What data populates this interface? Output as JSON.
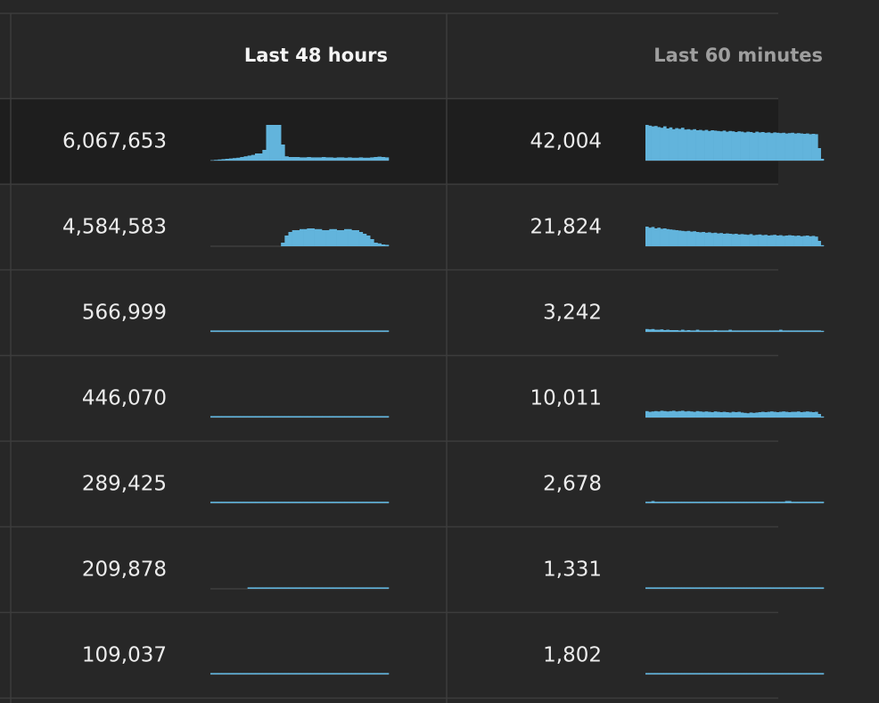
{
  "table": {
    "headers": [
      "Last 48 hours",
      "Last 60 minutes"
    ],
    "ylim": [
      0,
      100
    ],
    "rows": [
      {
        "cells": [
          {
            "value": "6,067,653",
            "spark": [
              1,
              2,
              3,
              4,
              5,
              6,
              7,
              8,
              10,
              12,
              14,
              16,
              20,
              20,
              30,
              100,
              100,
              100,
              100,
              45,
              12,
              10,
              10,
              10,
              9,
              9,
              10,
              9,
              9,
              9,
              10,
              9,
              9,
              8,
              9,
              9,
              8,
              9,
              8,
              8,
              9,
              8,
              8,
              9,
              10,
              11,
              10,
              9
            ]
          },
          {
            "value": "42,004",
            "spark": [
              100,
              98,
              96,
              97,
              94,
              92,
              96,
              90,
              93,
              88,
              91,
              89,
              92,
              87,
              88,
              86,
              88,
              85,
              86,
              84,
              86,
              83,
              85,
              84,
              83,
              82,
              84,
              81,
              83,
              82,
              80,
              82,
              81,
              79,
              81,
              80,
              78,
              81,
              79,
              80,
              78,
              79,
              77,
              79,
              78,
              77,
              78,
              76,
              77,
              78,
              76,
              77,
              76,
              75,
              76,
              74,
              75,
              74,
              35,
              5
            ]
          }
        ]
      },
      {
        "cells": [
          {
            "value": "4,584,583",
            "spark": [
              0,
              0,
              0,
              0,
              0,
              0,
              0,
              0,
              0,
              0,
              0,
              0,
              0,
              0,
              0,
              0,
              0,
              0,
              0,
              10,
              30,
              40,
              45,
              45,
              48,
              48,
              50,
              50,
              48,
              48,
              45,
              45,
              48,
              48,
              45,
              45,
              48,
              48,
              45,
              45,
              40,
              35,
              30,
              20,
              10,
              8,
              5,
              4
            ]
          },
          {
            "value": "21,824",
            "spark": [
              55,
              52,
              54,
              50,
              52,
              49,
              50,
              48,
              47,
              46,
              45,
              44,
              43,
              42,
              43,
              41,
              42,
              40,
              39,
              40,
              38,
              39,
              37,
              38,
              36,
              37,
              35,
              36,
              35,
              34,
              35,
              33,
              34,
              33,
              32,
              34,
              31,
              32,
              33,
              31,
              32,
              30,
              31,
              32,
              30,
              31,
              29,
              30,
              31,
              30,
              29,
              30,
              28,
              29,
              30,
              28,
              29,
              27,
              15,
              3
            ]
          }
        ]
      },
      {
        "cells": [
          {
            "value": "566,999",
            "spark": [
              4,
              4,
              4,
              4,
              4,
              4,
              4,
              4,
              4,
              4,
              4,
              4,
              4,
              4,
              4,
              4,
              4,
              4,
              4,
              4,
              4,
              4,
              4,
              4,
              4,
              4,
              4,
              4,
              4,
              4,
              4,
              4,
              4,
              4,
              4,
              4,
              4,
              4,
              4,
              4,
              4,
              4,
              4,
              4,
              4,
              4,
              4,
              4
            ]
          },
          {
            "value": "3,242",
            "spark": [
              8,
              7,
              8,
              6,
              6,
              7,
              5,
              6,
              5,
              5,
              5,
              4,
              6,
              4,
              5,
              4,
              4,
              6,
              4,
              4,
              4,
              4,
              4,
              5,
              4,
              4,
              4,
              4,
              6,
              4,
              4,
              4,
              4,
              4,
              4,
              4,
              4,
              4,
              4,
              4,
              4,
              4,
              4,
              4,
              4,
              6,
              4,
              4,
              4,
              4,
              4,
              4,
              4,
              4,
              4,
              4,
              4,
              4,
              4,
              3
            ]
          }
        ]
      },
      {
        "cells": [
          {
            "value": "446,070",
            "spark": [
              4,
              4,
              4,
              4,
              4,
              4,
              4,
              4,
              4,
              4,
              4,
              4,
              4,
              4,
              4,
              4,
              4,
              4,
              4,
              4,
              4,
              4,
              4,
              4,
              4,
              4,
              4,
              4,
              4,
              4,
              4,
              4,
              4,
              4,
              4,
              4,
              4,
              4,
              4,
              4,
              4,
              4,
              4,
              4,
              4,
              4,
              4,
              4
            ]
          },
          {
            "value": "10,011",
            "spark": [
              18,
              16,
              17,
              18,
              17,
              19,
              18,
              17,
              18,
              19,
              17,
              18,
              19,
              17,
              18,
              17,
              16,
              18,
              17,
              16,
              17,
              16,
              15,
              17,
              16,
              15,
              16,
              15,
              14,
              16,
              15,
              16,
              14,
              13,
              12,
              14,
              13,
              14,
              15,
              16,
              15,
              16,
              17,
              16,
              15,
              16,
              17,
              16,
              15,
              16,
              16,
              17,
              15,
              16,
              17,
              16,
              15,
              16,
              10,
              3
            ]
          }
        ]
      },
      {
        "cells": [
          {
            "value": "289,425",
            "spark": [
              4,
              4,
              4,
              4,
              4,
              4,
              4,
              4,
              4,
              4,
              4,
              4,
              4,
              4,
              4,
              4,
              4,
              4,
              4,
              4,
              4,
              4,
              4,
              4,
              4,
              4,
              4,
              4,
              4,
              4,
              4,
              4,
              4,
              4,
              4,
              4,
              4,
              4,
              4,
              4,
              4,
              4,
              4,
              4,
              4,
              4,
              4,
              4
            ]
          },
          {
            "value": "2,678",
            "spark": [
              4,
              4,
              6,
              4,
              4,
              4,
              4,
              4,
              4,
              4,
              4,
              4,
              4,
              4,
              4,
              4,
              4,
              4,
              4,
              4,
              4,
              4,
              4,
              4,
              4,
              4,
              4,
              4,
              4,
              4,
              4,
              4,
              4,
              4,
              4,
              4,
              4,
              4,
              4,
              4,
              4,
              4,
              4,
              4,
              4,
              4,
              4,
              6,
              6,
              4,
              4,
              4,
              4,
              4,
              4,
              4,
              4,
              4,
              4,
              4
            ]
          }
        ]
      },
      {
        "cells": [
          {
            "value": "209,878",
            "spark": [
              0,
              0,
              0,
              0,
              0,
              0,
              0,
              0,
              0,
              0,
              4,
              4,
              4,
              4,
              4,
              4,
              4,
              4,
              4,
              4,
              4,
              4,
              4,
              4,
              4,
              4,
              4,
              4,
              4,
              4,
              4,
              4,
              4,
              4,
              4,
              4,
              4,
              4,
              4,
              4,
              4,
              4,
              4,
              4,
              4,
              4,
              4,
              4
            ]
          },
          {
            "value": "1,331",
            "spark": [
              4,
              4,
              4,
              4,
              4,
              4,
              4,
              4,
              4,
              4,
              4,
              4,
              4,
              4,
              4,
              4,
              4,
              4,
              4,
              4,
              4,
              4,
              4,
              4,
              4,
              4,
              4,
              4,
              4,
              4,
              4,
              4,
              4,
              4,
              4,
              4,
              4,
              4,
              4,
              4,
              4,
              4,
              4,
              4,
              4,
              4,
              4,
              4,
              4,
              4,
              4,
              4,
              4,
              4,
              4,
              4,
              4,
              4,
              4,
              4
            ]
          }
        ]
      },
      {
        "cells": [
          {
            "value": "109,037",
            "spark": [
              4,
              4,
              4,
              4,
              4,
              4,
              4,
              4,
              4,
              4,
              4,
              4,
              4,
              4,
              4,
              4,
              4,
              4,
              4,
              4,
              4,
              4,
              4,
              4,
              4,
              4,
              4,
              4,
              4,
              4,
              4,
              4,
              4,
              4,
              4,
              4,
              4,
              4,
              4,
              4,
              4,
              4,
              4,
              4,
              4,
              4,
              4,
              4
            ]
          },
          {
            "value": "1,802",
            "spark": [
              4,
              4,
              4,
              4,
              4,
              4,
              4,
              4,
              4,
              4,
              4,
              4,
              4,
              4,
              4,
              4,
              4,
              4,
              4,
              4,
              4,
              4,
              4,
              4,
              4,
              4,
              4,
              4,
              4,
              4,
              4,
              4,
              4,
              4,
              4,
              4,
              4,
              4,
              4,
              4,
              4,
              4,
              4,
              4,
              4,
              4,
              4,
              4,
              4,
              4,
              4,
              4,
              4,
              4,
              4,
              4,
              4,
              4,
              4,
              4
            ]
          }
        ]
      }
    ]
  }
}
